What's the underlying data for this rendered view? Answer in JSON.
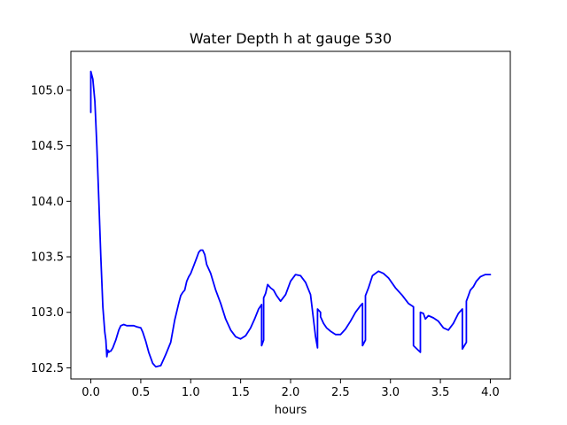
{
  "chart_data": {
    "type": "line",
    "title": "Water Depth h at gauge 530",
    "xlabel": "hours",
    "ylabel": "",
    "xlim": [
      -0.2,
      4.2
    ],
    "ylim": [
      102.4,
      105.35
    ],
    "x_ticks": [
      {
        "value": 0.0,
        "label": "0.0"
      },
      {
        "value": 0.5,
        "label": "0.5"
      },
      {
        "value": 1.0,
        "label": "1.0"
      },
      {
        "value": 1.5,
        "label": "1.5"
      },
      {
        "value": 2.0,
        "label": "2.0"
      },
      {
        "value": 2.5,
        "label": "2.5"
      },
      {
        "value": 3.0,
        "label": "3.0"
      },
      {
        "value": 3.5,
        "label": "3.5"
      },
      {
        "value": 4.0,
        "label": "4.0"
      }
    ],
    "y_ticks": [
      {
        "value": 102.5,
        "label": "102.5"
      },
      {
        "value": 103.0,
        "label": "103.0"
      },
      {
        "value": 103.5,
        "label": "103.5"
      },
      {
        "value": 104.0,
        "label": "104.0"
      },
      {
        "value": 104.5,
        "label": "104.5"
      },
      {
        "value": 105.0,
        "label": "105.0"
      }
    ],
    "grid": false,
    "legend": "none",
    "series": [
      {
        "color": "#0000ff",
        "x": [
          0.0,
          0.0,
          0.02,
          0.04,
          0.06,
          0.08,
          0.1,
          0.12,
          0.14,
          0.15,
          0.16,
          0.17,
          0.18,
          0.19,
          0.2,
          0.22,
          0.25,
          0.28,
          0.3,
          0.33,
          0.36,
          0.4,
          0.43,
          0.46,
          0.5,
          0.52,
          0.55,
          0.58,
          0.62,
          0.65,
          0.7,
          0.75,
          0.8,
          0.84,
          0.88,
          0.9,
          0.92,
          0.94,
          0.96,
          0.98,
          1.0,
          1.03,
          1.06,
          1.08,
          1.1,
          1.12,
          1.14,
          1.16,
          1.2,
          1.25,
          1.3,
          1.35,
          1.4,
          1.45,
          1.5,
          1.55,
          1.6,
          1.64,
          1.68,
          1.71,
          1.71,
          1.73,
          1.73,
          1.75,
          1.77,
          1.8,
          1.83,
          1.86,
          1.9,
          1.95,
          2.0,
          2.05,
          2.1,
          2.15,
          2.2,
          2.25,
          2.27,
          2.27,
          2.3,
          2.3,
          2.33,
          2.36,
          2.4,
          2.45,
          2.5,
          2.55,
          2.6,
          2.65,
          2.7,
          2.72,
          2.72,
          2.75,
          2.75,
          2.78,
          2.82,
          2.85,
          2.88,
          2.93,
          2.98,
          3.05,
          3.12,
          3.18,
          3.23,
          3.23,
          3.3,
          3.3,
          3.33,
          3.35,
          3.38,
          3.43,
          3.48,
          3.53,
          3.58,
          3.63,
          3.68,
          3.72,
          3.72,
          3.76,
          3.76,
          3.78,
          3.8,
          3.83,
          3.86,
          3.9,
          3.95,
          4.0
        ],
        "y": [
          104.8,
          105.17,
          105.1,
          104.9,
          104.5,
          104.0,
          103.5,
          103.05,
          102.82,
          102.75,
          102.6,
          102.66,
          102.64,
          102.65,
          102.65,
          102.68,
          102.75,
          102.84,
          102.88,
          102.89,
          102.88,
          102.88,
          102.88,
          102.87,
          102.86,
          102.82,
          102.74,
          102.64,
          102.54,
          102.51,
          102.52,
          102.62,
          102.73,
          102.93,
          103.08,
          103.15,
          103.18,
          103.2,
          103.28,
          103.32,
          103.35,
          103.42,
          103.49,
          103.54,
          103.56,
          103.56,
          103.52,
          103.43,
          103.35,
          103.2,
          103.08,
          102.94,
          102.84,
          102.78,
          102.76,
          102.79,
          102.86,
          102.94,
          103.03,
          103.07,
          102.7,
          102.75,
          103.13,
          103.17,
          103.25,
          103.22,
          103.2,
          103.15,
          103.1,
          103.16,
          103.28,
          103.34,
          103.33,
          103.27,
          103.16,
          102.78,
          102.68,
          103.03,
          103.0,
          102.96,
          102.9,
          102.86,
          102.83,
          102.8,
          102.8,
          102.85,
          102.92,
          103.0,
          103.06,
          103.08,
          102.7,
          102.75,
          103.15,
          103.22,
          103.33,
          103.35,
          103.37,
          103.35,
          103.31,
          103.22,
          103.15,
          103.08,
          103.05,
          102.7,
          102.64,
          103.0,
          102.99,
          102.94,
          102.97,
          102.95,
          102.92,
          102.86,
          102.84,
          102.9,
          102.99,
          103.03,
          102.67,
          102.73,
          103.1,
          103.15,
          103.2,
          103.23,
          103.28,
          103.32,
          103.34,
          103.34
        ]
      }
    ]
  }
}
